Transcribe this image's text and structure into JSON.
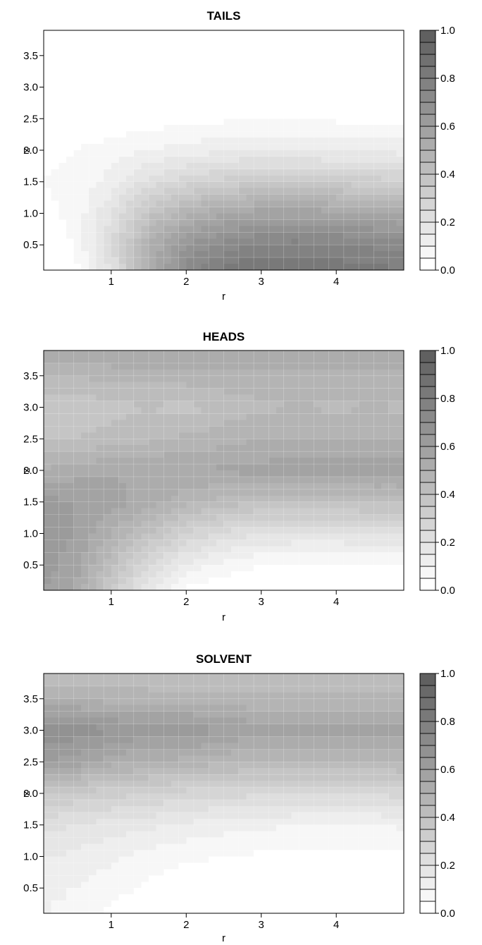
{
  "chart_data": [
    {
      "type": "heatmap",
      "title": "TAILS",
      "xlabel": "r",
      "ylabel": "z",
      "xlim": [
        0.1,
        4.9
      ],
      "ylim": [
        0.1,
        3.9
      ],
      "xticks": [
        1,
        2,
        3,
        4
      ],
      "xtick_labels": [
        "1",
        "2",
        "3",
        "4"
      ],
      "yticks": [
        0.5,
        1.0,
        1.5,
        2.0,
        2.5,
        3.0,
        3.5
      ],
      "ytick_labels": [
        "0.5",
        "1.0",
        "1.5",
        "2.0",
        "2.5",
        "3.0",
        "3.5"
      ],
      "colorbar": {
        "min": 0.0,
        "max": 1.0,
        "levels": 20,
        "tick_labels": [
          "0.0",
          "0.2",
          "0.4",
          "0.6",
          "0.8",
          "1.0"
        ]
      },
      "grid": true,
      "r": [
        0.1,
        0.5,
        1.0,
        1.5,
        2.0,
        2.5,
        3.0,
        3.5,
        4.0,
        4.5,
        4.9
      ],
      "z": [
        0.1,
        0.5,
        1.0,
        1.5,
        2.0,
        2.5,
        3.0,
        3.5,
        3.9
      ],
      "values": [
        [
          0.02,
          0.03,
          0.2,
          0.5,
          0.72,
          0.82,
          0.86,
          0.85,
          0.83,
          0.82,
          0.8
        ],
        [
          0.03,
          0.05,
          0.25,
          0.5,
          0.65,
          0.72,
          0.76,
          0.77,
          0.76,
          0.74,
          0.72
        ],
        [
          0.04,
          0.06,
          0.2,
          0.38,
          0.48,
          0.55,
          0.58,
          0.58,
          0.57,
          0.56,
          0.54
        ],
        [
          0.05,
          0.06,
          0.12,
          0.22,
          0.28,
          0.32,
          0.34,
          0.34,
          0.33,
          0.32,
          0.31
        ],
        [
          0.04,
          0.05,
          0.07,
          0.1,
          0.12,
          0.14,
          0.15,
          0.15,
          0.14,
          0.14,
          0.13
        ],
        [
          0.0,
          0.01,
          0.02,
          0.02,
          0.03,
          0.04,
          0.05,
          0.04,
          0.04,
          0.04,
          0.04
        ],
        [
          0.0,
          0.0,
          0.0,
          0.0,
          0.0,
          0.0,
          0.0,
          0.0,
          0.0,
          0.0,
          0.0
        ],
        [
          0.0,
          0.0,
          0.0,
          0.0,
          0.0,
          0.0,
          0.0,
          0.0,
          0.0,
          0.0,
          0.0
        ],
        [
          0.0,
          0.0,
          0.0,
          0.0,
          0.0,
          0.0,
          0.0,
          0.0,
          0.0,
          0.0,
          0.0
        ]
      ]
    },
    {
      "type": "heatmap",
      "title": "HEADS",
      "xlabel": "r",
      "ylabel": "z",
      "xlim": [
        0.1,
        4.9
      ],
      "ylim": [
        0.1,
        3.9
      ],
      "xticks": [
        1,
        2,
        3,
        4
      ],
      "xtick_labels": [
        "1",
        "2",
        "3",
        "4"
      ],
      "yticks": [
        0.5,
        1.0,
        1.5,
        2.0,
        2.5,
        3.0,
        3.5
      ],
      "ytick_labels": [
        "0.5",
        "1.0",
        "1.5",
        "2.0",
        "2.5",
        "3.0",
        "3.5"
      ],
      "colorbar": {
        "min": 0.0,
        "max": 1.0,
        "levels": 20,
        "tick_labels": [
          "0.0",
          "0.2",
          "0.4",
          "0.6",
          "0.8",
          "1.0"
        ]
      },
      "grid": true,
      "r": [
        0.1,
        0.5,
        1.0,
        1.5,
        2.0,
        2.5,
        3.0,
        3.5,
        4.0,
        4.5,
        4.9
      ],
      "z": [
        0.1,
        0.5,
        1.0,
        1.5,
        2.0,
        2.5,
        3.0,
        3.5,
        3.9
      ],
      "values": [
        [
          0.6,
          0.55,
          0.35,
          0.15,
          0.04,
          0.01,
          0.0,
          0.0,
          0.0,
          0.0,
          0.0
        ],
        [
          0.62,
          0.58,
          0.42,
          0.25,
          0.14,
          0.08,
          0.05,
          0.05,
          0.05,
          0.05,
          0.05
        ],
        [
          0.62,
          0.6,
          0.5,
          0.4,
          0.3,
          0.24,
          0.2,
          0.19,
          0.19,
          0.2,
          0.2
        ],
        [
          0.62,
          0.6,
          0.58,
          0.52,
          0.47,
          0.43,
          0.41,
          0.41,
          0.41,
          0.42,
          0.42
        ],
        [
          0.5,
          0.53,
          0.54,
          0.55,
          0.55,
          0.56,
          0.57,
          0.58,
          0.58,
          0.58,
          0.58
        ],
        [
          0.4,
          0.4,
          0.42,
          0.44,
          0.46,
          0.48,
          0.5,
          0.5,
          0.5,
          0.5,
          0.5
        ],
        [
          0.36,
          0.36,
          0.38,
          0.4,
          0.38,
          0.42,
          0.44,
          0.45,
          0.44,
          0.45,
          0.44
        ],
        [
          0.45,
          0.45,
          0.47,
          0.47,
          0.48,
          0.48,
          0.49,
          0.49,
          0.49,
          0.49,
          0.49
        ],
        [
          0.55,
          0.55,
          0.55,
          0.55,
          0.55,
          0.55,
          0.55,
          0.55,
          0.55,
          0.55,
          0.55
        ]
      ]
    },
    {
      "type": "heatmap",
      "title": "SOLVENT",
      "xlabel": "r",
      "ylabel": "z",
      "xlim": [
        0.1,
        4.9
      ],
      "ylim": [
        0.1,
        3.9
      ],
      "xticks": [
        1,
        2,
        3,
        4
      ],
      "xtick_labels": [
        "1",
        "2",
        "3",
        "4"
      ],
      "yticks": [
        0.5,
        1.0,
        1.5,
        2.0,
        2.5,
        3.0,
        3.5
      ],
      "ytick_labels": [
        "0.5",
        "1.0",
        "1.5",
        "2.0",
        "2.5",
        "3.0",
        "3.5"
      ],
      "colorbar": {
        "min": 0.0,
        "max": 1.0,
        "levels": 20,
        "tick_labels": [
          "0.0",
          "0.2",
          "0.4",
          "0.6",
          "0.8",
          "1.0"
        ]
      },
      "grid": true,
      "r": [
        0.1,
        0.5,
        1.0,
        1.5,
        2.0,
        2.5,
        3.0,
        3.5,
        4.0,
        4.5,
        4.9
      ],
      "z": [
        0.1,
        0.5,
        1.0,
        1.5,
        2.0,
        2.5,
        3.0,
        3.5,
        3.9
      ],
      "values": [
        [
          0.1,
          0.08,
          0.04,
          0.0,
          0.0,
          0.0,
          0.0,
          0.0,
          0.0,
          0.0,
          0.0
        ],
        [
          0.12,
          0.1,
          0.07,
          0.04,
          0.02,
          0.01,
          0.0,
          0.0,
          0.0,
          0.0,
          0.0
        ],
        [
          0.15,
          0.14,
          0.11,
          0.08,
          0.06,
          0.05,
          0.04,
          0.04,
          0.04,
          0.04,
          0.04
        ],
        [
          0.22,
          0.2,
          0.18,
          0.16,
          0.14,
          0.12,
          0.11,
          0.1,
          0.1,
          0.1,
          0.11
        ],
        [
          0.36,
          0.34,
          0.32,
          0.3,
          0.28,
          0.27,
          0.26,
          0.26,
          0.26,
          0.26,
          0.27
        ],
        [
          0.6,
          0.58,
          0.52,
          0.5,
          0.48,
          0.46,
          0.45,
          0.45,
          0.45,
          0.45,
          0.46
        ],
        [
          0.68,
          0.68,
          0.66,
          0.62,
          0.64,
          0.6,
          0.58,
          0.57,
          0.57,
          0.57,
          0.56
        ],
        [
          0.5,
          0.5,
          0.48,
          0.48,
          0.47,
          0.47,
          0.46,
          0.46,
          0.46,
          0.46,
          0.46
        ],
        [
          0.4,
          0.4,
          0.4,
          0.4,
          0.4,
          0.4,
          0.4,
          0.4,
          0.4,
          0.4,
          0.4
        ]
      ]
    }
  ]
}
